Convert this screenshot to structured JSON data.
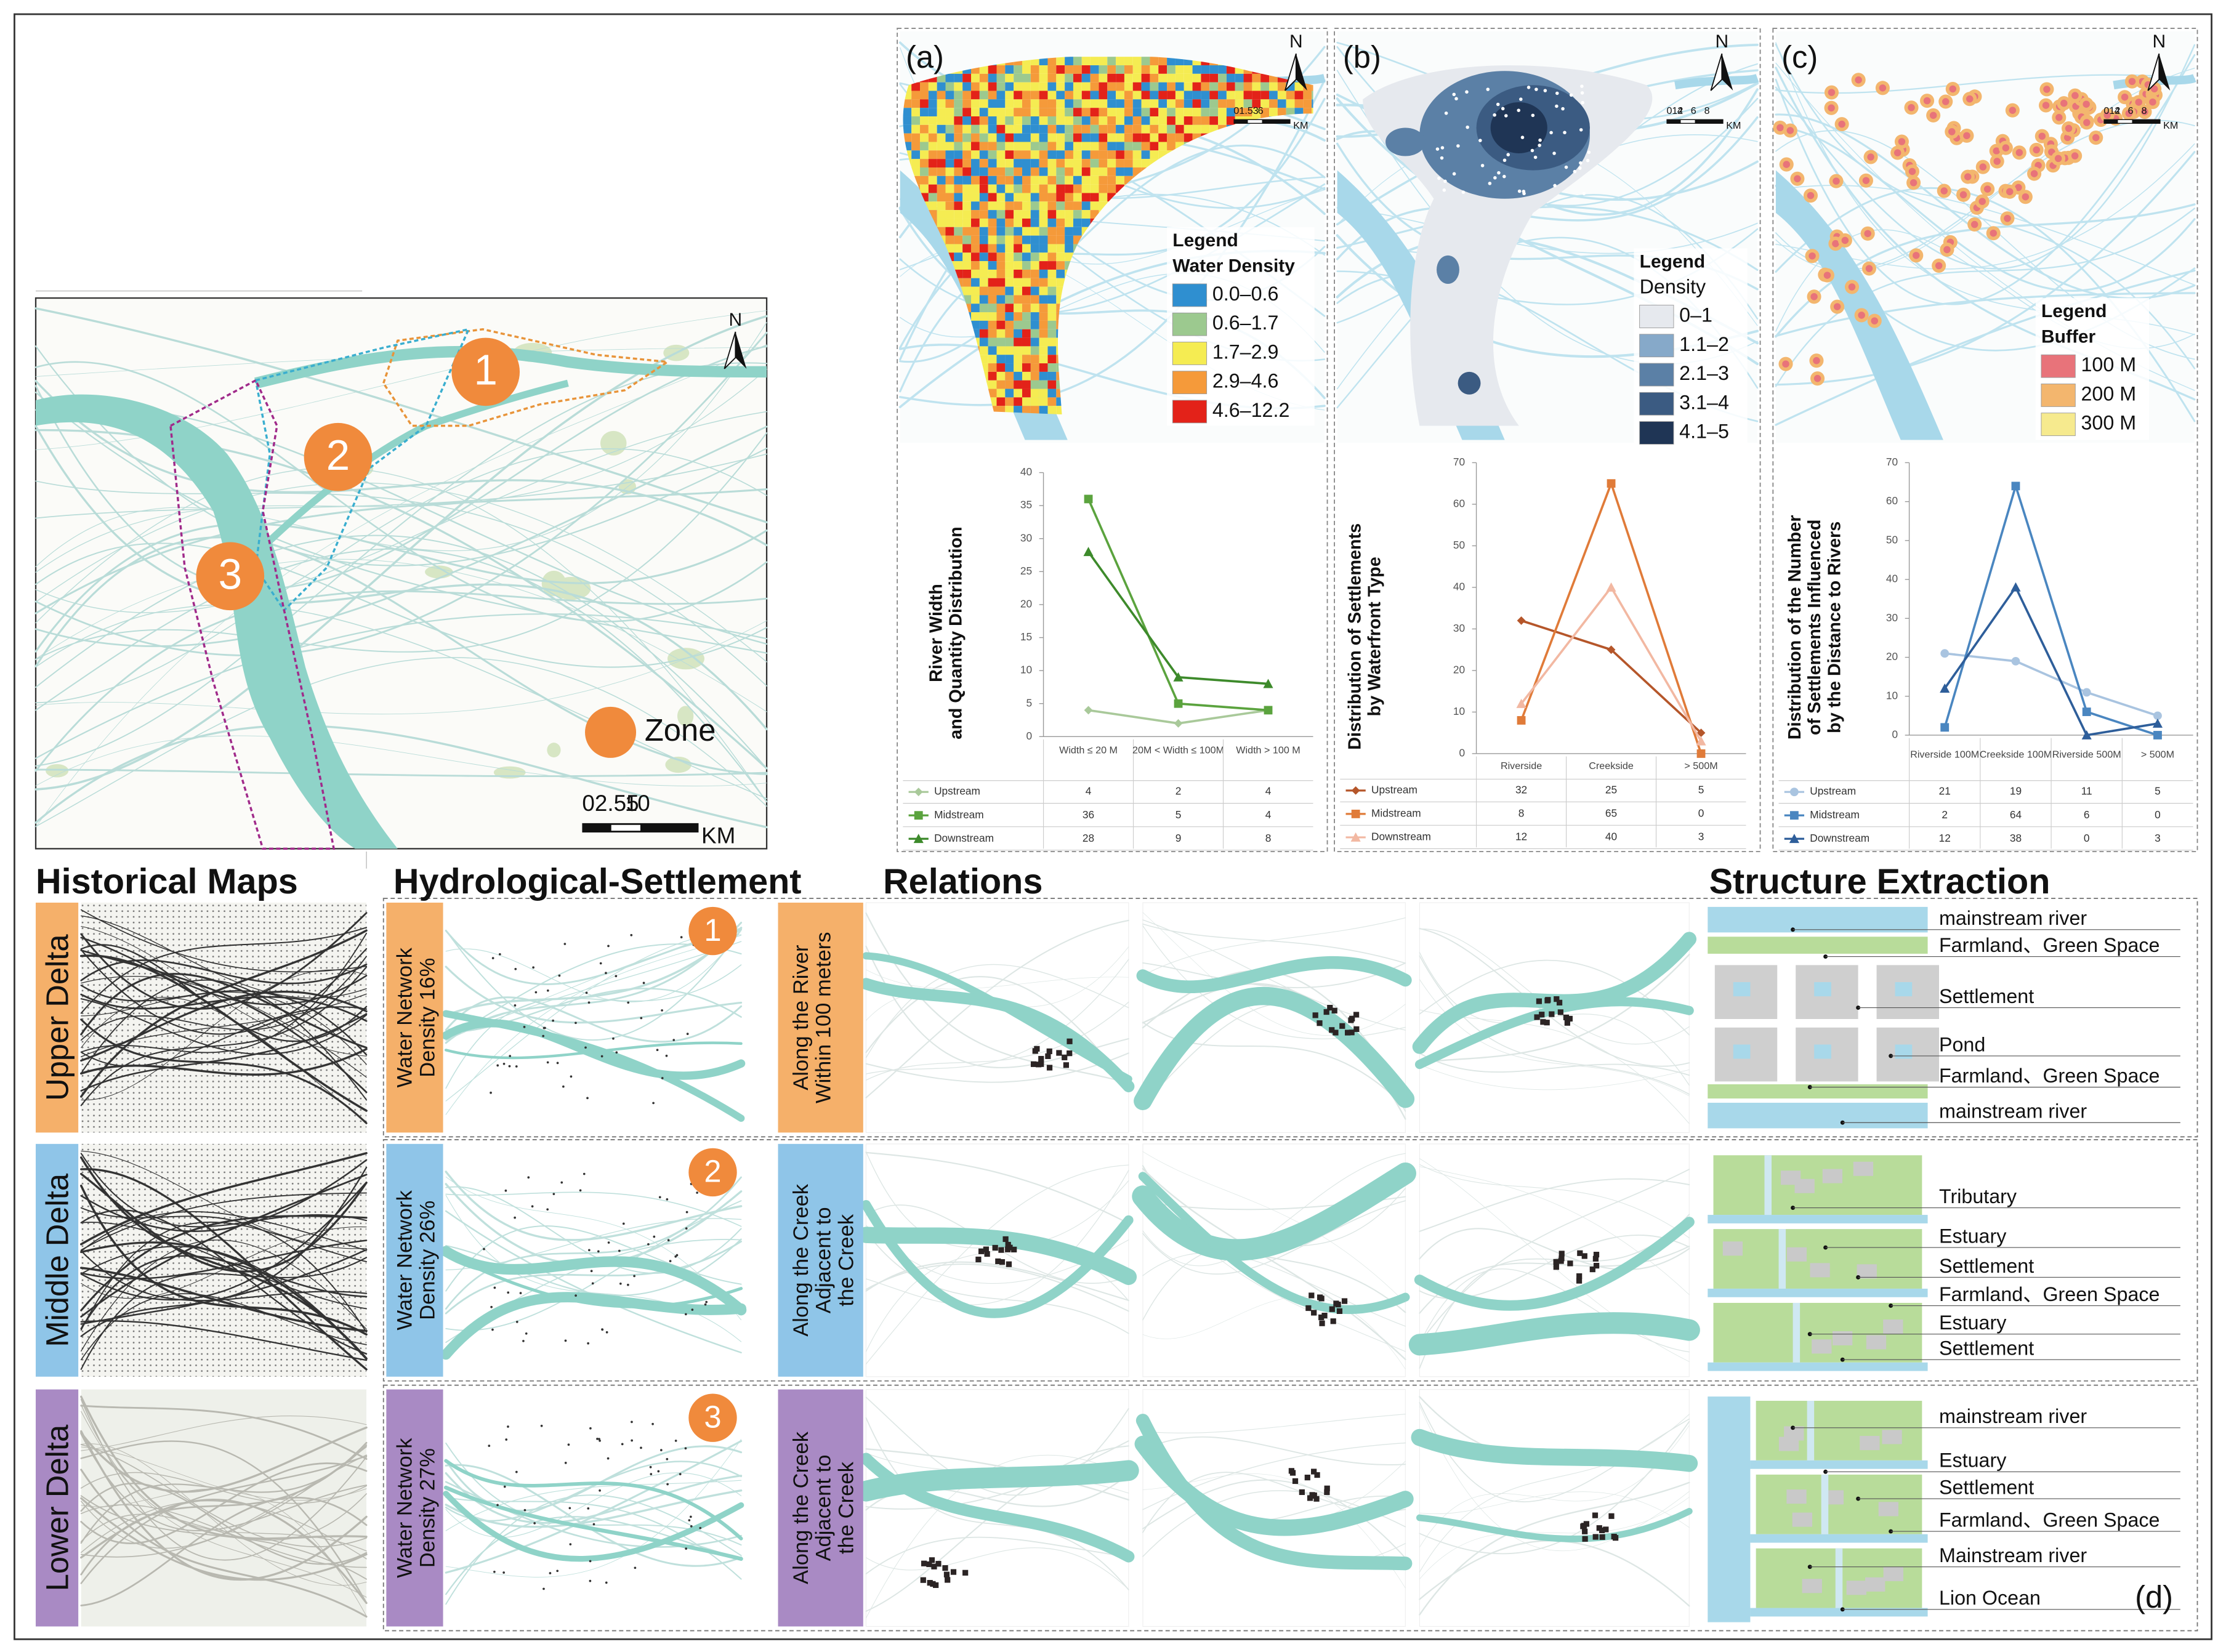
{
  "panel_labels": [
    "(a)",
    "(b)",
    "(c)",
    "(d)"
  ],
  "north": "N",
  "overview": {
    "zones": [
      "1",
      "2",
      "3"
    ],
    "zone_legend": "Zone",
    "zone_color": "#f08a3c",
    "scale_labels": [
      "02.55",
      "10",
      "KM"
    ]
  },
  "map_legends": [
    {
      "title": "Legend",
      "subtitle": "Water Density",
      "scale_labels": [
        "01.53",
        "6",
        "KM"
      ],
      "items": [
        {
          "label": "0.0–0.6",
          "color": "#2f8fd0"
        },
        {
          "label": "0.6–1.7",
          "color": "#9cc98f"
        },
        {
          "label": "1.7–2.9",
          "color": "#f5ec52"
        },
        {
          "label": "2.9–4.6",
          "color": "#f59a3a"
        },
        {
          "label": "4.6–12.2",
          "color": "#e32219"
        }
      ]
    },
    {
      "title": "Legend",
      "subtitle": "Density",
      "scale_labels": [
        "012",
        "4",
        "6",
        "8",
        "KM"
      ],
      "items": [
        {
          "label": "0–1",
          "color": "#e6e9ee"
        },
        {
          "label": "1.1–2",
          "color": "#86a9c9"
        },
        {
          "label": "2.1–3",
          "color": "#5b80a6"
        },
        {
          "label": "3.1–4",
          "color": "#3b5b82"
        },
        {
          "label": "4.1–5",
          "color": "#1f3555"
        }
      ]
    },
    {
      "title": "Legend",
      "subtitle": "Buffer",
      "scale_labels": [
        "012",
        "4",
        "6",
        "8",
        "KM"
      ],
      "items": [
        {
          "label": "100 M",
          "color": "#e8737a"
        },
        {
          "label": "200 M",
          "color": "#f3b66e"
        },
        {
          "label": "300 M",
          "color": "#f6ea8e"
        }
      ]
    }
  ],
  "chart_data": [
    {
      "type": "line",
      "y_label": [
        "River Width",
        "and Quantity Distribution"
      ],
      "categories": [
        "Width ≤ 20 M",
        "20M < Width ≤ 100M",
        "Width > 100 M"
      ],
      "series": [
        {
          "name": "Upstream",
          "color": "#a9c99a",
          "marker": "diamond",
          "values": [
            4,
            2,
            4
          ]
        },
        {
          "name": "Midstream",
          "color": "#5ba33e",
          "marker": "square",
          "values": [
            36,
            5,
            4
          ]
        },
        {
          "name": "Downstream",
          "color": "#3d8a2b",
          "marker": "triangle",
          "values": [
            28,
            9,
            8
          ]
        }
      ],
      "ylim": [
        0,
        40
      ],
      "yticks": [
        0,
        5,
        10,
        15,
        20,
        25,
        30,
        35,
        40
      ],
      "legend": "table"
    },
    {
      "type": "line",
      "y_label": [
        "Distribution of Settlements",
        "by Waterfront Type"
      ],
      "categories": [
        "Riverside",
        "Creekside",
        "> 500M"
      ],
      "series": [
        {
          "name": "Upstream",
          "color": "#b5562a",
          "marker": "diamond",
          "values": [
            32,
            25,
            5
          ]
        },
        {
          "name": "Midstream",
          "color": "#e07b39",
          "marker": "square",
          "values": [
            8,
            65,
            0
          ]
        },
        {
          "name": "Downstream",
          "color": "#f2b8a2",
          "marker": "triangle",
          "values": [
            12,
            40,
            3
          ]
        }
      ],
      "ylim": [
        0,
        70
      ],
      "yticks": [
        0,
        10,
        20,
        30,
        40,
        50,
        60,
        70
      ],
      "legend": "table"
    },
    {
      "type": "line",
      "y_label": [
        "Distribution  of the Number",
        "of Settlements Influenced",
        "by the Distance to Rivers"
      ],
      "categories": [
        "Riverside 100M",
        "Creekside 100M",
        "Riverside 500M",
        "> 500M"
      ],
      "series": [
        {
          "name": "Upstream",
          "color": "#a9c4e0",
          "marker": "circle",
          "values": [
            21,
            19,
            11,
            5
          ]
        },
        {
          "name": "Midstream",
          "color": "#4a86c0",
          "marker": "square",
          "values": [
            2,
            64,
            6,
            0
          ]
        },
        {
          "name": "Downstream",
          "color": "#2e5e9a",
          "marker": "triangle",
          "values": [
            12,
            38,
            0,
            3
          ]
        }
      ],
      "ylim": [
        0,
        70
      ],
      "yticks": [
        0,
        10,
        20,
        30,
        40,
        50,
        60,
        70
      ],
      "legend": "table"
    }
  ],
  "sections": [
    "Historical Maps",
    "Hydrological-Settlement",
    "Relations",
    "Structure Extraction"
  ],
  "rows": [
    {
      "name": "Upper Delta",
      "color": "#f5b06a",
      "density": [
        "Water Network",
        "Density 16%"
      ],
      "zone": "1",
      "relation": [
        "Along the River",
        "Within 100 meters"
      ],
      "structure": [
        "mainstream river",
        "Farmland、Green Space",
        "Settlement",
        "Pond",
        "Farmland、Green Space",
        "mainstream river"
      ]
    },
    {
      "name": "Middle Delta",
      "color": "#8fc5e8",
      "density": [
        "Water Network",
        "Density 26%"
      ],
      "zone": "2",
      "relation": [
        "Along the Creek",
        "Adjacent to",
        "the Creek"
      ],
      "structure": [
        "Tributary",
        "Estuary",
        "Settlement",
        "Farmland、Green Space",
        "Estuary",
        "Settlement"
      ]
    },
    {
      "name": "Lower Delta",
      "color": "#a98ac4",
      "density": [
        "Water Network",
        "Density 27%"
      ],
      "zone": "3",
      "relation": [
        "Along the Creek",
        "Adjacent to",
        "the Creek"
      ],
      "structure": [
        "mainstream river",
        "Estuary",
        "Settlement",
        "Farmland、Green Space",
        "Mainstream river",
        "Lion Ocean"
      ]
    }
  ]
}
